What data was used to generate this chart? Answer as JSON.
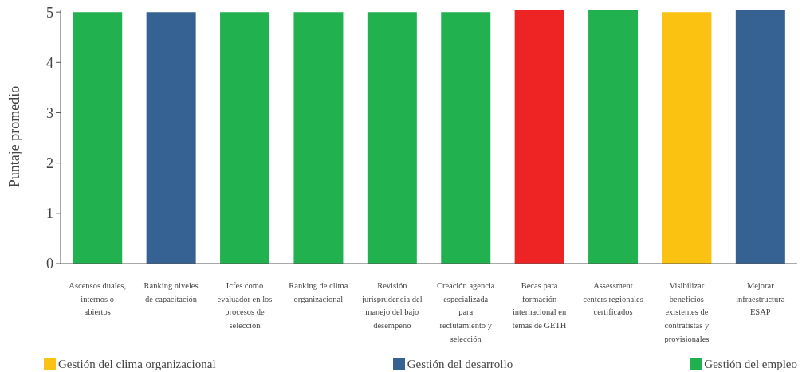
{
  "chart_data": {
    "type": "bar",
    "ylabel": "Puntaje promedio",
    "categories": [
      "Ascensos duales, internos o abiertos",
      "Ranking niveles de capacitación",
      "Icfes como evaluador en los procesos de selección",
      "Ranking de clima organizacional",
      "Revisión jurisprudencia del manejo del bajo desempeño",
      "Creación agencia especializada para reclutamiento y selección",
      "Becas para formación internacional en temas de GETH",
      "Assessment centers regionales certificados",
      "Visibilizar beneficios existentes de contratistas y provisionales",
      "Mejorar infraestructura ESAP"
    ],
    "series": [
      {
        "name": "Gestión del clima organizacional",
        "color": "#fcc212",
        "values": [
          null,
          null,
          null,
          null,
          null,
          null,
          null,
          null,
          5,
          null
        ]
      },
      {
        "name": "Gestión del desarrollo",
        "color": "#366293",
        "values": [
          null,
          5,
          null,
          null,
          null,
          null,
          null,
          null,
          null,
          5.05
        ]
      },
      {
        "name": "Gestión del empleo",
        "color": "#21b24f",
        "values": [
          5,
          null,
          5,
          5,
          5,
          5,
          null,
          5.05,
          null,
          null
        ]
      },
      {
        "color": "#ee2324",
        "values": [
          null,
          null,
          null,
          null,
          null,
          null,
          5.05,
          null,
          null,
          null
        ]
      }
    ],
    "stacked": true,
    "ylim": [
      0,
      5.05
    ],
    "yticks": [
      0,
      1,
      2,
      3,
      4,
      5
    ],
    "legend": "bottom"
  }
}
